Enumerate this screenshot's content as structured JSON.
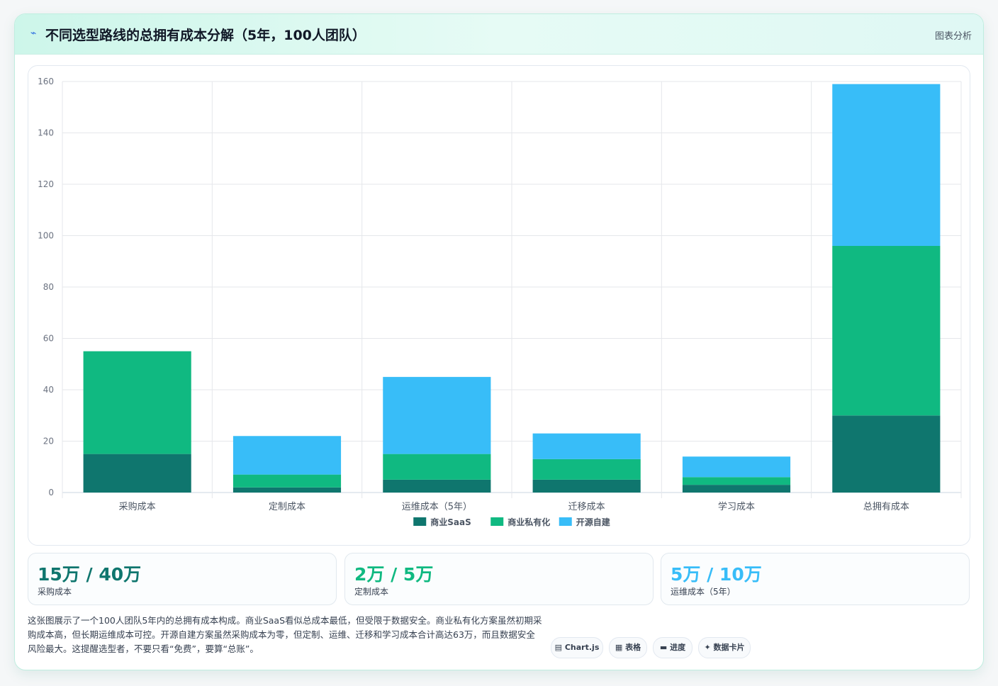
{
  "header": {
    "title": "不同选型路线的总拥有成本分解（5年，100人团队）",
    "tag": "图表分析"
  },
  "chart_data": {
    "type": "bar",
    "stacked": true,
    "categories": [
      "采购成本",
      "定制成本",
      "运维成本（5年）",
      "迁移成本",
      "学习成本",
      "总拥有成本"
    ],
    "series": [
      {
        "name": "商业SaaS",
        "values": [
          15,
          2,
          5,
          5,
          3,
          30
        ],
        "color": "#0f766e"
      },
      {
        "name": "商业私有化",
        "values": [
          40,
          5,
          10,
          8,
          3,
          66
        ],
        "color": "#10b981"
      },
      {
        "name": "开源自建",
        "values": [
          0,
          15,
          30,
          10,
          8,
          63
        ],
        "color": "#38bdf8"
      }
    ],
    "ylim": [
      0,
      160
    ],
    "yticks": [
      0,
      20,
      40,
      60,
      80,
      100,
      120,
      140,
      160
    ],
    "grid": true,
    "legend": "bottom"
  },
  "stats": [
    {
      "value": "15万 / 40万",
      "label": "采购成本",
      "color": "#0f766e"
    },
    {
      "value": "2万 / 5万",
      "label": "定制成本",
      "color": "#10b981"
    },
    {
      "value": "5万 / 10万",
      "label": "运维成本（5年）",
      "color": "#38bdf8"
    }
  ],
  "description": "这张图展示了一个100人团队5年内的总拥有成本构成。商业SaaS看似总成本最低，但受限于数据安全。商业私有化方案虽然初期采购成本高，但长期运维成本可控。开源自建方案虽然采购成本为零，但定制、运维、迁移和学习成本合计高达63万，而且数据安全风险最大。这提醒选型者，不要只看“免费”，要算“总账”。",
  "pills": [
    {
      "icon": "chart-icon",
      "glyph": "▤",
      "label": "Chart.js"
    },
    {
      "icon": "table-icon",
      "glyph": "▦",
      "label": "表格"
    },
    {
      "icon": "progress-icon",
      "glyph": "▬",
      "label": "进度"
    },
    {
      "icon": "card-icon",
      "glyph": "✦",
      "label": "数据卡片"
    }
  ]
}
